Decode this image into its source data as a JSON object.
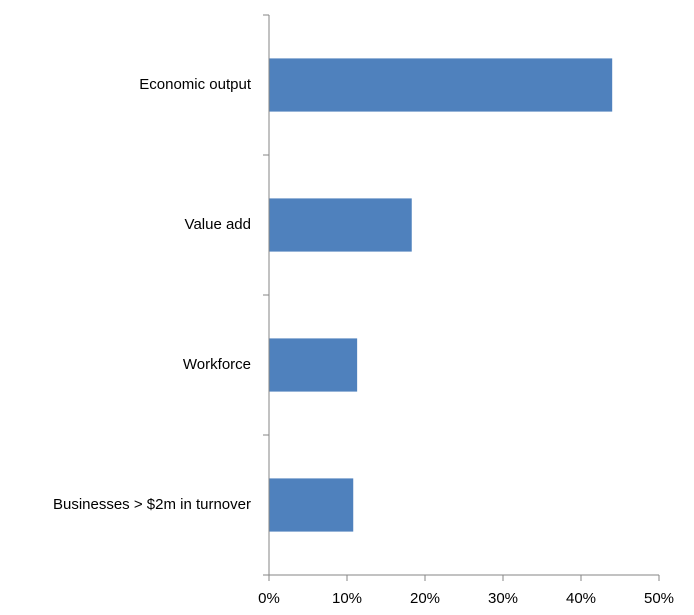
{
  "chart_data": {
    "type": "bar",
    "orientation": "horizontal",
    "categories": [
      "Economic output",
      "Value add",
      "Workforce",
      "Businesses > $2m in turnover"
    ],
    "values": [
      44,
      18.3,
      11.3,
      10.8
    ],
    "value_unit": "%",
    "xlim": [
      0,
      50
    ],
    "x_ticks": [
      0,
      10,
      20,
      30,
      40,
      50
    ],
    "x_tick_labels": [
      "0%",
      "10%",
      "20%",
      "30%",
      "40%",
      "50%"
    ],
    "grid": false,
    "legend": "none",
    "bar_color": "#4f81bd",
    "axis_color": "#868686",
    "text_color": "#000000"
  }
}
